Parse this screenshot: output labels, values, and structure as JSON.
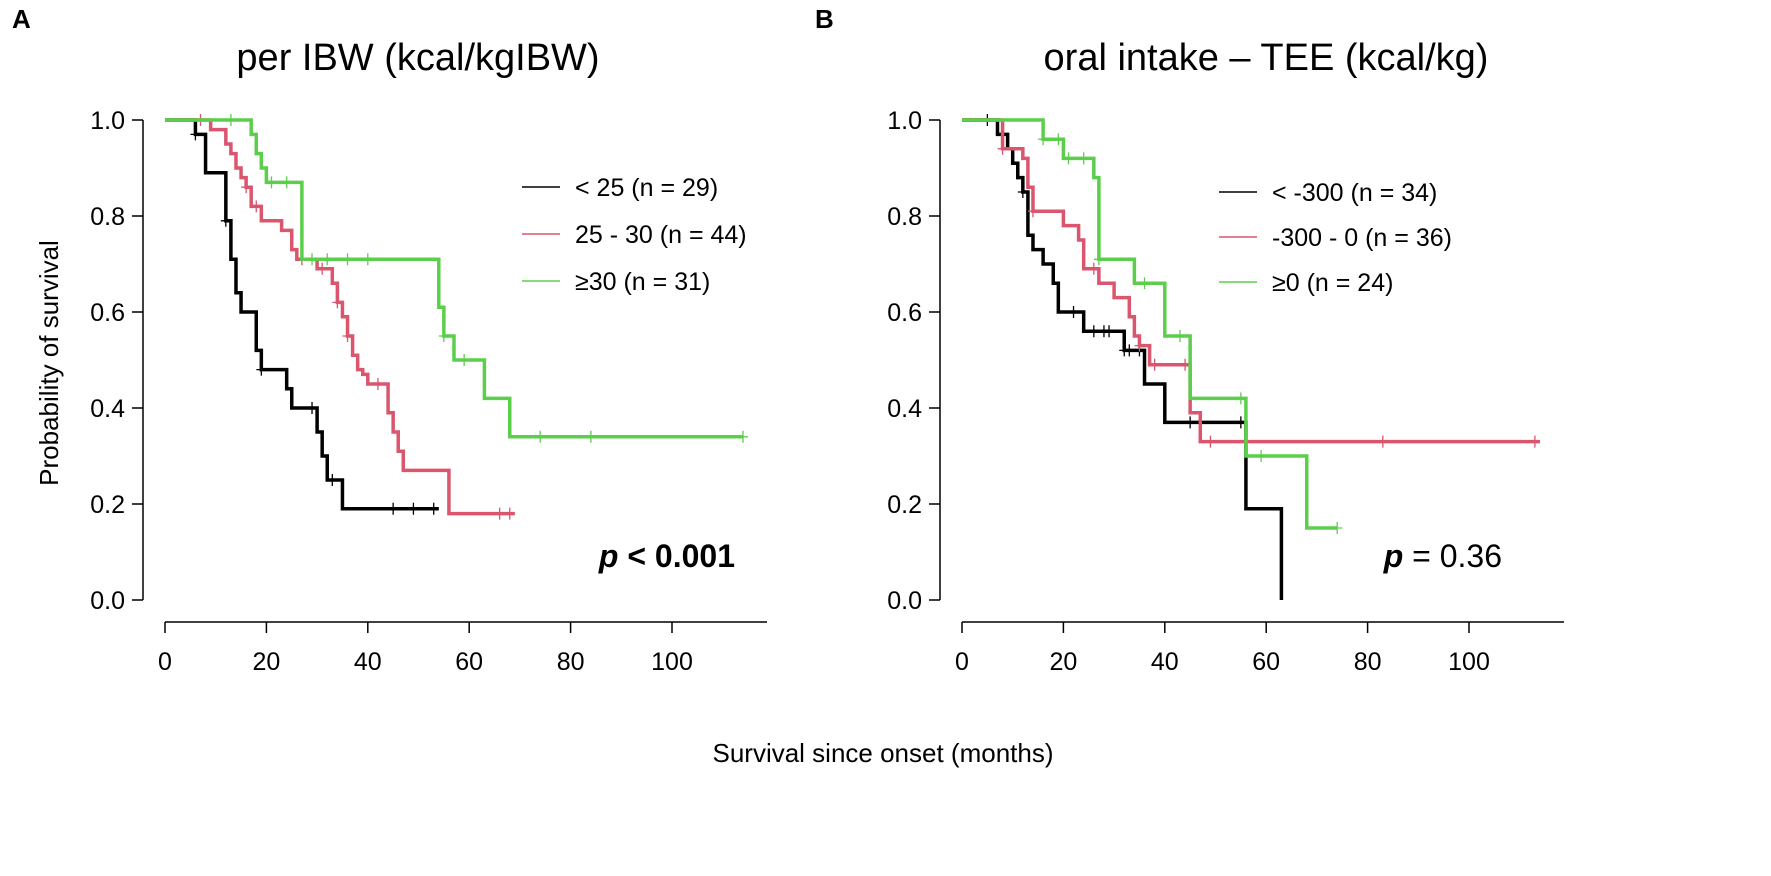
{
  "figure": {
    "ylabel": "Probability of survival",
    "xlabel": "Survival since onset (months)"
  },
  "chart_data": [
    {
      "type": "line",
      "step": true,
      "panel": "A",
      "title": "per IBW (kcal/kgIBW)",
      "xlabel": "Survival since onset (months)",
      "ylabel": "Probability of survival",
      "xlim": [
        0,
        118
      ],
      "ylim": [
        0,
        1
      ],
      "x_ticks": [
        0,
        20,
        40,
        60,
        80,
        100
      ],
      "y_ticks": [
        0.0,
        0.2,
        0.4,
        0.6,
        0.8,
        1.0
      ],
      "y_tick_labels": [
        "0.0",
        "0.2",
        "0.4",
        "0.6",
        "0.8",
        "1.0"
      ],
      "p_value": {
        "italic": "p",
        "rest": " < 0.001",
        "bold": true
      },
      "legend_position": "top-right",
      "series": [
        {
          "name": "< 25 (n = 29)",
          "color": "#000000",
          "x": [
            0,
            5,
            6,
            8,
            12,
            13,
            14,
            15,
            18,
            19,
            20,
            24,
            25,
            29,
            30,
            31,
            32,
            34,
            35,
            54
          ],
          "y": [
            1.0,
            1.0,
            0.97,
            0.89,
            0.79,
            0.71,
            0.64,
            0.6,
            0.52,
            0.48,
            0.48,
            0.44,
            0.4,
            0.4,
            0.35,
            0.3,
            0.25,
            0.25,
            0.19,
            0.19
          ],
          "censor_x": [
            6,
            12,
            19,
            29,
            33,
            45,
            49,
            53
          ]
        },
        {
          "name": "25 - 30 (n = 44)",
          "color": "#d9566e",
          "x": [
            0,
            7,
            9,
            12,
            13,
            14,
            15,
            16,
            17,
            19,
            22,
            23,
            25,
            26,
            28,
            30,
            33,
            34,
            35,
            36,
            37,
            38,
            39,
            40,
            41,
            44,
            45,
            46,
            47,
            56,
            69
          ],
          "y": [
            1.0,
            1.0,
            0.98,
            0.95,
            0.93,
            0.9,
            0.88,
            0.86,
            0.82,
            0.79,
            0.79,
            0.77,
            0.73,
            0.71,
            0.71,
            0.69,
            0.66,
            0.62,
            0.59,
            0.55,
            0.51,
            0.48,
            0.47,
            0.45,
            0.45,
            0.39,
            0.35,
            0.31,
            0.27,
            0.18,
            0.18
          ],
          "censor_x": [
            7,
            16,
            18,
            27,
            31,
            34,
            36,
            42,
            66,
            68
          ]
        },
        {
          "name": "≥30 (n = 31)",
          "color": "#5bcf4b",
          "x": [
            0,
            15,
            17,
            18,
            19,
            20,
            26,
            27,
            39,
            54,
            55,
            57,
            63,
            68,
            114
          ],
          "y": [
            1.0,
            1.0,
            0.97,
            0.93,
            0.9,
            0.87,
            0.87,
            0.71,
            0.71,
            0.61,
            0.55,
            0.5,
            0.42,
            0.34,
            0.34
          ],
          "censor_x": [
            13,
            21,
            24,
            29,
            32,
            36,
            40,
            55,
            59,
            74,
            84,
            114
          ]
        }
      ]
    },
    {
      "type": "line",
      "step": true,
      "panel": "B",
      "title": "oral intake – TEE (kcal/kg)",
      "xlabel": "Survival since onset (months)",
      "ylabel": "Probability of survival",
      "xlim": [
        0,
        118
      ],
      "ylim": [
        0,
        1
      ],
      "x_ticks": [
        0,
        20,
        40,
        60,
        80,
        100
      ],
      "y_ticks": [
        0.0,
        0.2,
        0.4,
        0.6,
        0.8,
        1.0
      ],
      "y_tick_labels": [
        "0.0",
        "0.2",
        "0.4",
        "0.6",
        "0.8",
        "1.0"
      ],
      "p_value": {
        "italic": "p",
        "rest": " = 0.36",
        "bold": false
      },
      "legend_position": "top-right",
      "series": [
        {
          "name": "< -300 (n = 34)",
          "color": "#000000",
          "x": [
            0,
            5,
            7,
            9,
            10,
            11,
            12,
            13,
            14,
            16,
            18,
            19,
            20,
            24,
            31,
            32,
            34,
            36,
            40,
            55,
            56,
            63
          ],
          "y": [
            1.0,
            1.0,
            0.97,
            0.94,
            0.91,
            0.88,
            0.85,
            0.76,
            0.73,
            0.7,
            0.66,
            0.6,
            0.6,
            0.56,
            0.56,
            0.52,
            0.52,
            0.45,
            0.37,
            0.37,
            0.19,
            0.0
          ],
          "censor_x": [
            5,
            12,
            22,
            26,
            28,
            29,
            32,
            33,
            35,
            45,
            55
          ]
        },
        {
          "name": "-300 - 0 (n = 36)",
          "color": "#d9566e",
          "x": [
            0,
            6,
            8,
            12,
            13,
            14,
            16,
            20,
            23,
            24,
            27,
            30,
            33,
            34,
            35,
            37,
            44,
            45,
            47,
            114
          ],
          "y": [
            1.0,
            1.0,
            0.94,
            0.92,
            0.86,
            0.81,
            0.81,
            0.78,
            0.75,
            0.69,
            0.66,
            0.63,
            0.59,
            0.55,
            0.53,
            0.49,
            0.49,
            0.39,
            0.33,
            0.33
          ],
          "censor_x": [
            8,
            14,
            26,
            35,
            38,
            44,
            49,
            83,
            113
          ]
        },
        {
          "name": "≥0 (n = 24)",
          "color": "#5bcf4b",
          "x": [
            0,
            15,
            16,
            20,
            26,
            27,
            30,
            34,
            39,
            40,
            44,
            45,
            48,
            54,
            56,
            57,
            68,
            74
          ],
          "y": [
            1.0,
            1.0,
            0.96,
            0.92,
            0.88,
            0.71,
            0.71,
            0.66,
            0.66,
            0.55,
            0.55,
            0.42,
            0.42,
            0.42,
            0.3,
            0.3,
            0.15,
            0.15
          ],
          "censor_x": [
            16,
            19,
            21,
            24,
            27,
            36,
            43,
            55,
            59,
            74
          ]
        }
      ]
    }
  ]
}
